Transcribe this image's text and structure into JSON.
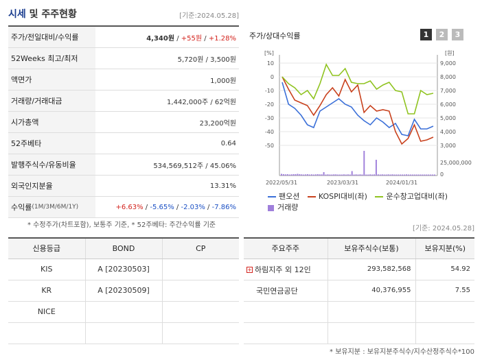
{
  "header": {
    "title": "시세",
    "title_sub": " 및 주주현황",
    "base_date": "[기준:2024.05.28]"
  },
  "quote": [
    {
      "label": "주가/전일대비/수익률",
      "price": "4,340원",
      "sep1": " / ",
      "change": "+55원",
      "sep2": " / ",
      "rate": "+1.28%"
    },
    {
      "label": "52Weeks 최고/최저",
      "value": "5,720원 / 3,500원"
    },
    {
      "label": "액면가",
      "value": "1,000원"
    },
    {
      "label": "거래량/거래대금",
      "value": "1,442,000주 / 62억원"
    },
    {
      "label": "시가총액",
      "value": "23,200억원"
    },
    {
      "label": "52주베타",
      "value": "0.64"
    },
    {
      "label": "발행주식수/유동비율",
      "value": "534,569,512주 / 45.06%"
    },
    {
      "label": "외국인지분율",
      "value": "13.31%"
    },
    {
      "label": "수익률",
      "label_sub": " (1M/3M/6M/1Y)",
      "r1": "+6.63%",
      "r2": "-5.65%",
      "r3": "-2.03%",
      "r4": "-7.86%",
      "sep": " / "
    }
  ],
  "quote_note": "* 수정주가(차트포함), 보통주 기준, * 52주베타: 주간수익률 기준",
  "chart_panel": {
    "title": "주가/상대수익률",
    "tabs": [
      "1",
      "2",
      "3"
    ],
    "base_date": "[기준: 2024.05.28]"
  },
  "chart_data": {
    "type": "line",
    "left_axis_unit": "[%]",
    "right_axis_unit": "[원]",
    "left_ticks": [
      "10",
      "0",
      "-10",
      "-20",
      "-30",
      "-40",
      "-50"
    ],
    "right_ticks": [
      "9,000",
      "8,000",
      "7,000",
      "6,000",
      "5,000",
      "4,000",
      "3,000"
    ],
    "volume_tick": "25,000,000",
    "volume_zero": "0",
    "x_labels": [
      "2022/05/31",
      "2023/03/31",
      "2024/01/31"
    ],
    "ylim_left": [
      -50,
      10
    ],
    "series": [
      {
        "name": "팬오션",
        "color": "#3a6fd8",
        "values": [
          -4,
          -20,
          -23,
          -28,
          -35,
          -37,
          -25,
          -22,
          -19,
          -16,
          -20,
          -22,
          -28,
          -32,
          -35,
          -30,
          -33,
          -37,
          -34,
          -42,
          -43,
          -31,
          -38,
          -38,
          -36
        ]
      },
      {
        "name": "KOSPI대비(좌)",
        "color": "#c8401c",
        "values": [
          0,
          -9,
          -17,
          -19,
          -21,
          -28,
          -21,
          -13,
          -8,
          -14,
          -2,
          -11,
          -6,
          -26,
          -21,
          -25,
          -24,
          -25,
          -40,
          -49,
          -45,
          -35,
          -47,
          -46,
          -44
        ]
      },
      {
        "name": "운수창고업대비(좌)",
        "color": "#8fc31f",
        "values": [
          0,
          -5,
          -8,
          -13,
          -10,
          -16,
          -5,
          9,
          1,
          1,
          6,
          -4,
          -5,
          -5,
          -3,
          -9,
          -6,
          -4,
          -10,
          -11,
          -27,
          -27,
          -10,
          -13,
          -12
        ]
      }
    ],
    "volume": {
      "name": "거래량",
      "color": "#9f7fdb",
      "values": [
        0.5,
        0.4,
        0.35,
        0.4,
        0.3,
        0.35,
        0.4,
        0.4,
        0.5,
        0.4,
        0.35,
        0.3,
        0.35,
        0.4,
        0.3,
        0.35,
        0.3,
        0.35,
        0.4,
        0.35,
        0.35,
        0.4,
        0.3,
        0.35,
        0.3,
        0.3,
        0.35,
        0.35,
        0.3,
        0.3,
        0.3,
        0.35,
        0.3,
        0.35,
        0.3,
        0.4,
        0.3,
        0.35,
        0.3,
        0.35,
        0.3,
        0.35,
        0.3,
        0.3,
        0.35,
        0.3,
        0.35,
        0.3,
        0.35,
        0.3,
        0.35,
        0.3,
        0.3,
        0.35,
        0.3,
        0.35,
        0.3,
        0.3,
        0.3,
        0.3,
        0.3,
        0.3,
        0.35,
        0.3,
        0.3,
        0.3,
        0.3,
        0.3,
        0.3,
        0.3,
        0.3,
        0.3,
        0.3,
        0.3,
        0.3,
        0.3,
        0.3
      ]
    }
  },
  "credit_table": {
    "headers": [
      "신용등급",
      "BOND",
      "CP"
    ],
    "rows": [
      [
        "KIS",
        "A [20230503]",
        ""
      ],
      [
        "KR",
        "A [20230509]",
        ""
      ],
      [
        "NICE",
        "",
        ""
      ],
      [
        "",
        "",
        ""
      ]
    ]
  },
  "holders_table": {
    "headers": [
      "주요주주",
      "보유주식수(보통)",
      "보유지분(%)"
    ],
    "rows": [
      {
        "name": "하림지주 외 12인",
        "shares": "293,582,568",
        "pct": "54.92",
        "expand": "+"
      },
      {
        "name": "국민연금공단",
        "shares": "40,376,955",
        "pct": "7.55",
        "expand": ""
      },
      {
        "name": "",
        "shares": "",
        "pct": "",
        "expand": ""
      },
      {
        "name": "",
        "shares": "",
        "pct": "",
        "expand": ""
      }
    ],
    "note": "* 보유지분 : 보유지분주식수/지수산정주식수*100"
  }
}
